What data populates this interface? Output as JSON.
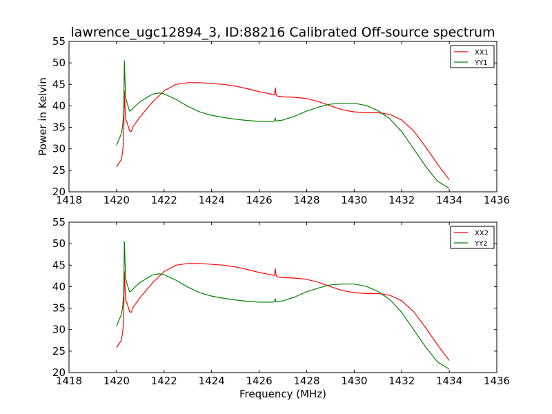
{
  "figure": {
    "title": "lawrence_ugc12894_3, ID:88216 Calibrated Off-source spectrum",
    "ylabel": "Power in Kelvin",
    "xlabel": "Frequency (MHz)"
  },
  "chart_data": [
    {
      "type": "line",
      "title": "lawrence_ugc12894_3, ID:88216 Calibrated Off-source spectrum",
      "xlabel": "",
      "ylabel": "Power in Kelvin",
      "xlim": [
        1418,
        1436
      ],
      "ylim": [
        20,
        55
      ],
      "xticks": [
        1418,
        1420,
        1422,
        1424,
        1426,
        1428,
        1430,
        1432,
        1434,
        1436
      ],
      "yticks": [
        20,
        25,
        30,
        35,
        40,
        45,
        50,
        55
      ],
      "legend": "top-right",
      "grid": false,
      "series": [
        {
          "name": "XX1",
          "color": "#ff0000",
          "x": [
            1420.0,
            1420.2,
            1420.25,
            1420.3,
            1420.33,
            1420.38,
            1420.45,
            1420.55,
            1420.62,
            1420.7,
            1421.0,
            1421.5,
            1422.0,
            1422.5,
            1423.0,
            1423.5,
            1424.0,
            1424.5,
            1425.0,
            1425.5,
            1426.0,
            1426.55,
            1426.65,
            1426.68,
            1426.71,
            1426.75,
            1427.0,
            1427.5,
            1428.0,
            1428.5,
            1429.0,
            1429.5,
            1430.0,
            1430.5,
            1431.0,
            1431.5,
            1432.0,
            1432.5,
            1433.0,
            1433.5,
            1434.0
          ],
          "y": [
            25.8,
            27.5,
            29.0,
            32.0,
            43.5,
            37.0,
            36.0,
            34.2,
            34.0,
            35.2,
            37.5,
            40.8,
            43.5,
            45.0,
            45.4,
            45.4,
            45.2,
            45.0,
            44.6,
            44.0,
            43.3,
            42.7,
            42.6,
            44.2,
            42.7,
            42.3,
            42.1,
            42.0,
            41.7,
            41.0,
            40.0,
            39.1,
            38.6,
            38.4,
            38.4,
            38.0,
            36.7,
            34.2,
            30.5,
            26.5,
            22.8
          ]
        },
        {
          "name": "YY1",
          "color": "#008000",
          "x": [
            1420.0,
            1420.2,
            1420.25,
            1420.3,
            1420.33,
            1420.38,
            1420.45,
            1420.55,
            1420.62,
            1420.7,
            1421.0,
            1421.5,
            1421.8,
            1422.0,
            1422.5,
            1423.0,
            1423.5,
            1424.0,
            1424.5,
            1425.0,
            1425.5,
            1426.0,
            1426.55,
            1426.65,
            1426.68,
            1426.71,
            1426.75,
            1427.0,
            1427.5,
            1428.0,
            1428.5,
            1429.0,
            1429.5,
            1430.0,
            1430.5,
            1431.0,
            1431.5,
            1432.0,
            1432.5,
            1433.0,
            1433.5,
            1434.0
          ],
          "y": [
            30.8,
            33.5,
            35.0,
            38.0,
            50.5,
            42.0,
            40.5,
            38.8,
            39.0,
            39.5,
            41.0,
            42.7,
            43.0,
            42.8,
            41.5,
            39.9,
            38.6,
            37.8,
            37.3,
            36.9,
            36.6,
            36.4,
            36.4,
            36.5,
            37.2,
            36.5,
            36.5,
            36.7,
            37.6,
            38.8,
            39.7,
            40.4,
            40.6,
            40.6,
            40.1,
            38.9,
            37.0,
            34.0,
            30.0,
            26.0,
            22.5,
            20.8
          ]
        }
      ]
    },
    {
      "type": "line",
      "title": "",
      "xlabel": "Frequency (MHz)",
      "ylabel": "",
      "xlim": [
        1418,
        1436
      ],
      "ylim": [
        20,
        55
      ],
      "xticks": [
        1418,
        1420,
        1422,
        1424,
        1426,
        1428,
        1430,
        1432,
        1434,
        1436
      ],
      "yticks": [
        20,
        25,
        30,
        35,
        40,
        45,
        50,
        55
      ],
      "legend": "top-right",
      "grid": false,
      "series": [
        {
          "name": "XX2",
          "color": "#ff0000",
          "x": [
            1420.0,
            1420.2,
            1420.25,
            1420.3,
            1420.33,
            1420.38,
            1420.45,
            1420.55,
            1420.62,
            1420.7,
            1421.0,
            1421.5,
            1422.0,
            1422.5,
            1423.0,
            1423.5,
            1424.0,
            1424.5,
            1425.0,
            1425.5,
            1426.0,
            1426.55,
            1426.65,
            1426.68,
            1426.71,
            1426.75,
            1427.0,
            1427.5,
            1428.0,
            1428.5,
            1429.0,
            1429.5,
            1430.0,
            1430.5,
            1431.0,
            1431.5,
            1432.0,
            1432.5,
            1433.0,
            1433.5,
            1434.0
          ],
          "y": [
            25.8,
            27.5,
            29.0,
            32.0,
            43.5,
            37.0,
            36.0,
            34.2,
            34.0,
            35.2,
            37.5,
            40.8,
            43.5,
            45.0,
            45.4,
            45.4,
            45.2,
            45.0,
            44.6,
            44.0,
            43.3,
            42.7,
            42.6,
            44.2,
            42.7,
            42.3,
            42.1,
            42.0,
            41.7,
            41.0,
            40.0,
            39.1,
            38.6,
            38.4,
            38.4,
            38.0,
            36.7,
            34.2,
            30.5,
            26.5,
            22.8
          ]
        },
        {
          "name": "YY2",
          "color": "#008000",
          "x": [
            1420.0,
            1420.2,
            1420.25,
            1420.3,
            1420.33,
            1420.38,
            1420.45,
            1420.55,
            1420.62,
            1420.7,
            1421.0,
            1421.5,
            1421.8,
            1422.0,
            1422.5,
            1423.0,
            1423.5,
            1424.0,
            1424.5,
            1425.0,
            1425.5,
            1426.0,
            1426.55,
            1426.65,
            1426.68,
            1426.71,
            1426.75,
            1427.0,
            1427.5,
            1428.0,
            1428.5,
            1429.0,
            1429.5,
            1430.0,
            1430.5,
            1431.0,
            1431.5,
            1432.0,
            1432.5,
            1433.0,
            1433.5,
            1434.0
          ],
          "y": [
            30.8,
            33.5,
            35.0,
            38.0,
            50.5,
            42.0,
            40.5,
            38.8,
            39.0,
            39.5,
            41.0,
            42.7,
            43.0,
            42.8,
            41.5,
            39.9,
            38.6,
            37.8,
            37.3,
            36.9,
            36.6,
            36.4,
            36.4,
            36.5,
            37.2,
            36.5,
            36.5,
            36.7,
            37.6,
            38.8,
            39.7,
            40.4,
            40.6,
            40.6,
            40.1,
            38.9,
            37.0,
            34.0,
            30.0,
            26.0,
            22.5,
            20.8
          ]
        }
      ]
    }
  ]
}
